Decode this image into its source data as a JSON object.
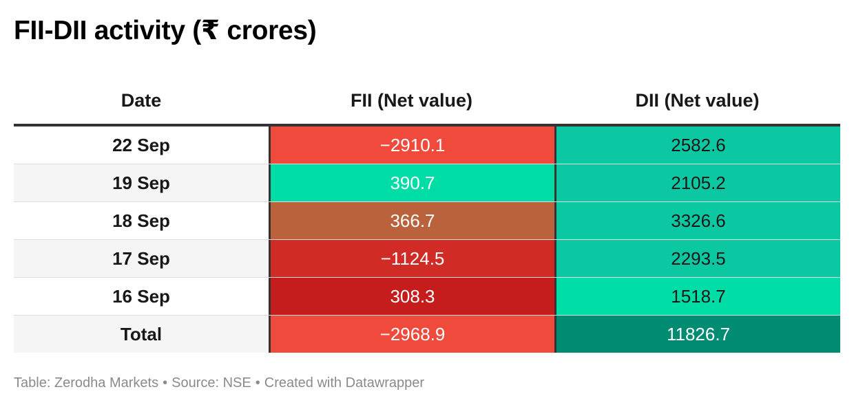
{
  "title": "FII-DII activity (₹ crores)",
  "chart_data": {
    "type": "table",
    "title": "FII-DII activity (₹ crores)",
    "columns": [
      "Date",
      "FII (Net value)",
      "DII (Net value)"
    ],
    "rows": [
      {
        "date": "22 Sep",
        "fii": "−2910.1",
        "dii": "2582.6",
        "fii_color": "#ef4a3c",
        "dii_color": "#0bc8a2",
        "bg": "#ffffff"
      },
      {
        "date": "19 Sep",
        "fii": "390.7",
        "dii": "2105.2",
        "fii_color": "#00dca6",
        "dii_color": "#0bc8a2",
        "bg": "#f5f5f5"
      },
      {
        "date": "18 Sep",
        "fii": "366.7",
        "dii": "3326.6",
        "fii_color": "#ba623c",
        "dii_color": "#0bc8a2",
        "bg": "#ffffff"
      },
      {
        "date": "17 Sep",
        "fii": "−1124.5",
        "dii": "2293.5",
        "fii_color": "#d12b26",
        "dii_color": "#0bc8a2",
        "bg": "#f5f5f5"
      },
      {
        "date": "16 Sep",
        "fii": "308.3",
        "dii": "1518.7",
        "fii_color": "#c51c1c",
        "dii_color": "#00dca6",
        "bg": "#ffffff"
      },
      {
        "date": "Total",
        "fii": "−2968.9",
        "dii": "11826.7",
        "fii_color": "#ef4a3c",
        "dii_color": "#008c72",
        "bg": "#f5f5f5"
      }
    ]
  },
  "footer": {
    "table": "Table: Zerodha Markets",
    "source": "Source: NSE",
    "created": "Created with Datawrapper",
    "separator": "•"
  }
}
